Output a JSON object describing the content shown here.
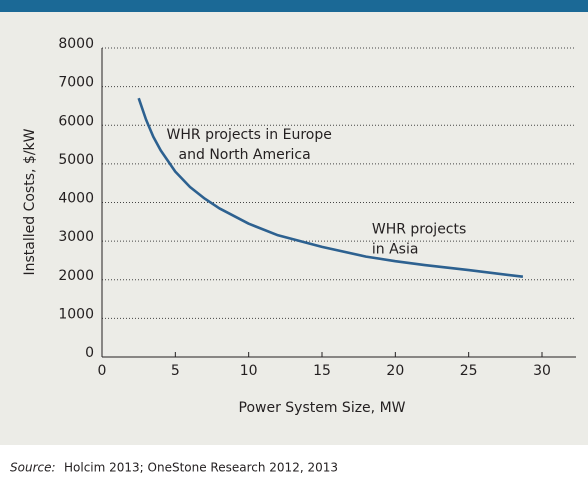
{
  "chart_data": {
    "type": "line",
    "x_label": "Power System Size, MW",
    "y_label": "Installed Costs, $/kW",
    "x": [
      2.5,
      3,
      3.5,
      4,
      5,
      6,
      7,
      8,
      10,
      12,
      15,
      18,
      20,
      22,
      25,
      28.7
    ],
    "series": [
      {
        "name": "Installed costs",
        "color": "#2d6190",
        "values": [
          6700,
          6150,
          5700,
          5350,
          4800,
          4400,
          4100,
          3850,
          3450,
          3150,
          2850,
          2600,
          2480,
          2380,
          2250,
          2080
        ]
      }
    ],
    "xlim": [
      0,
      30
    ],
    "xticks": [
      0,
      5,
      10,
      15,
      20,
      25,
      30
    ],
    "ylim": [
      0,
      8000
    ],
    "yticks": [
      0,
      1000,
      2000,
      3000,
      4000,
      5000,
      6000,
      7000,
      8000
    ],
    "grid": true,
    "annotations": [
      {
        "lines": [
          "WHR projects in Europe",
          "and North America"
        ],
        "x": 4.4,
        "y": 5750
      },
      {
        "lines": [
          "WHR projects",
          "in Asia"
        ],
        "x": 18.4,
        "y": 3300
      }
    ],
    "source_label": "Source:",
    "source": "Holcim 2013; OneStone Research 2012, 2013"
  }
}
